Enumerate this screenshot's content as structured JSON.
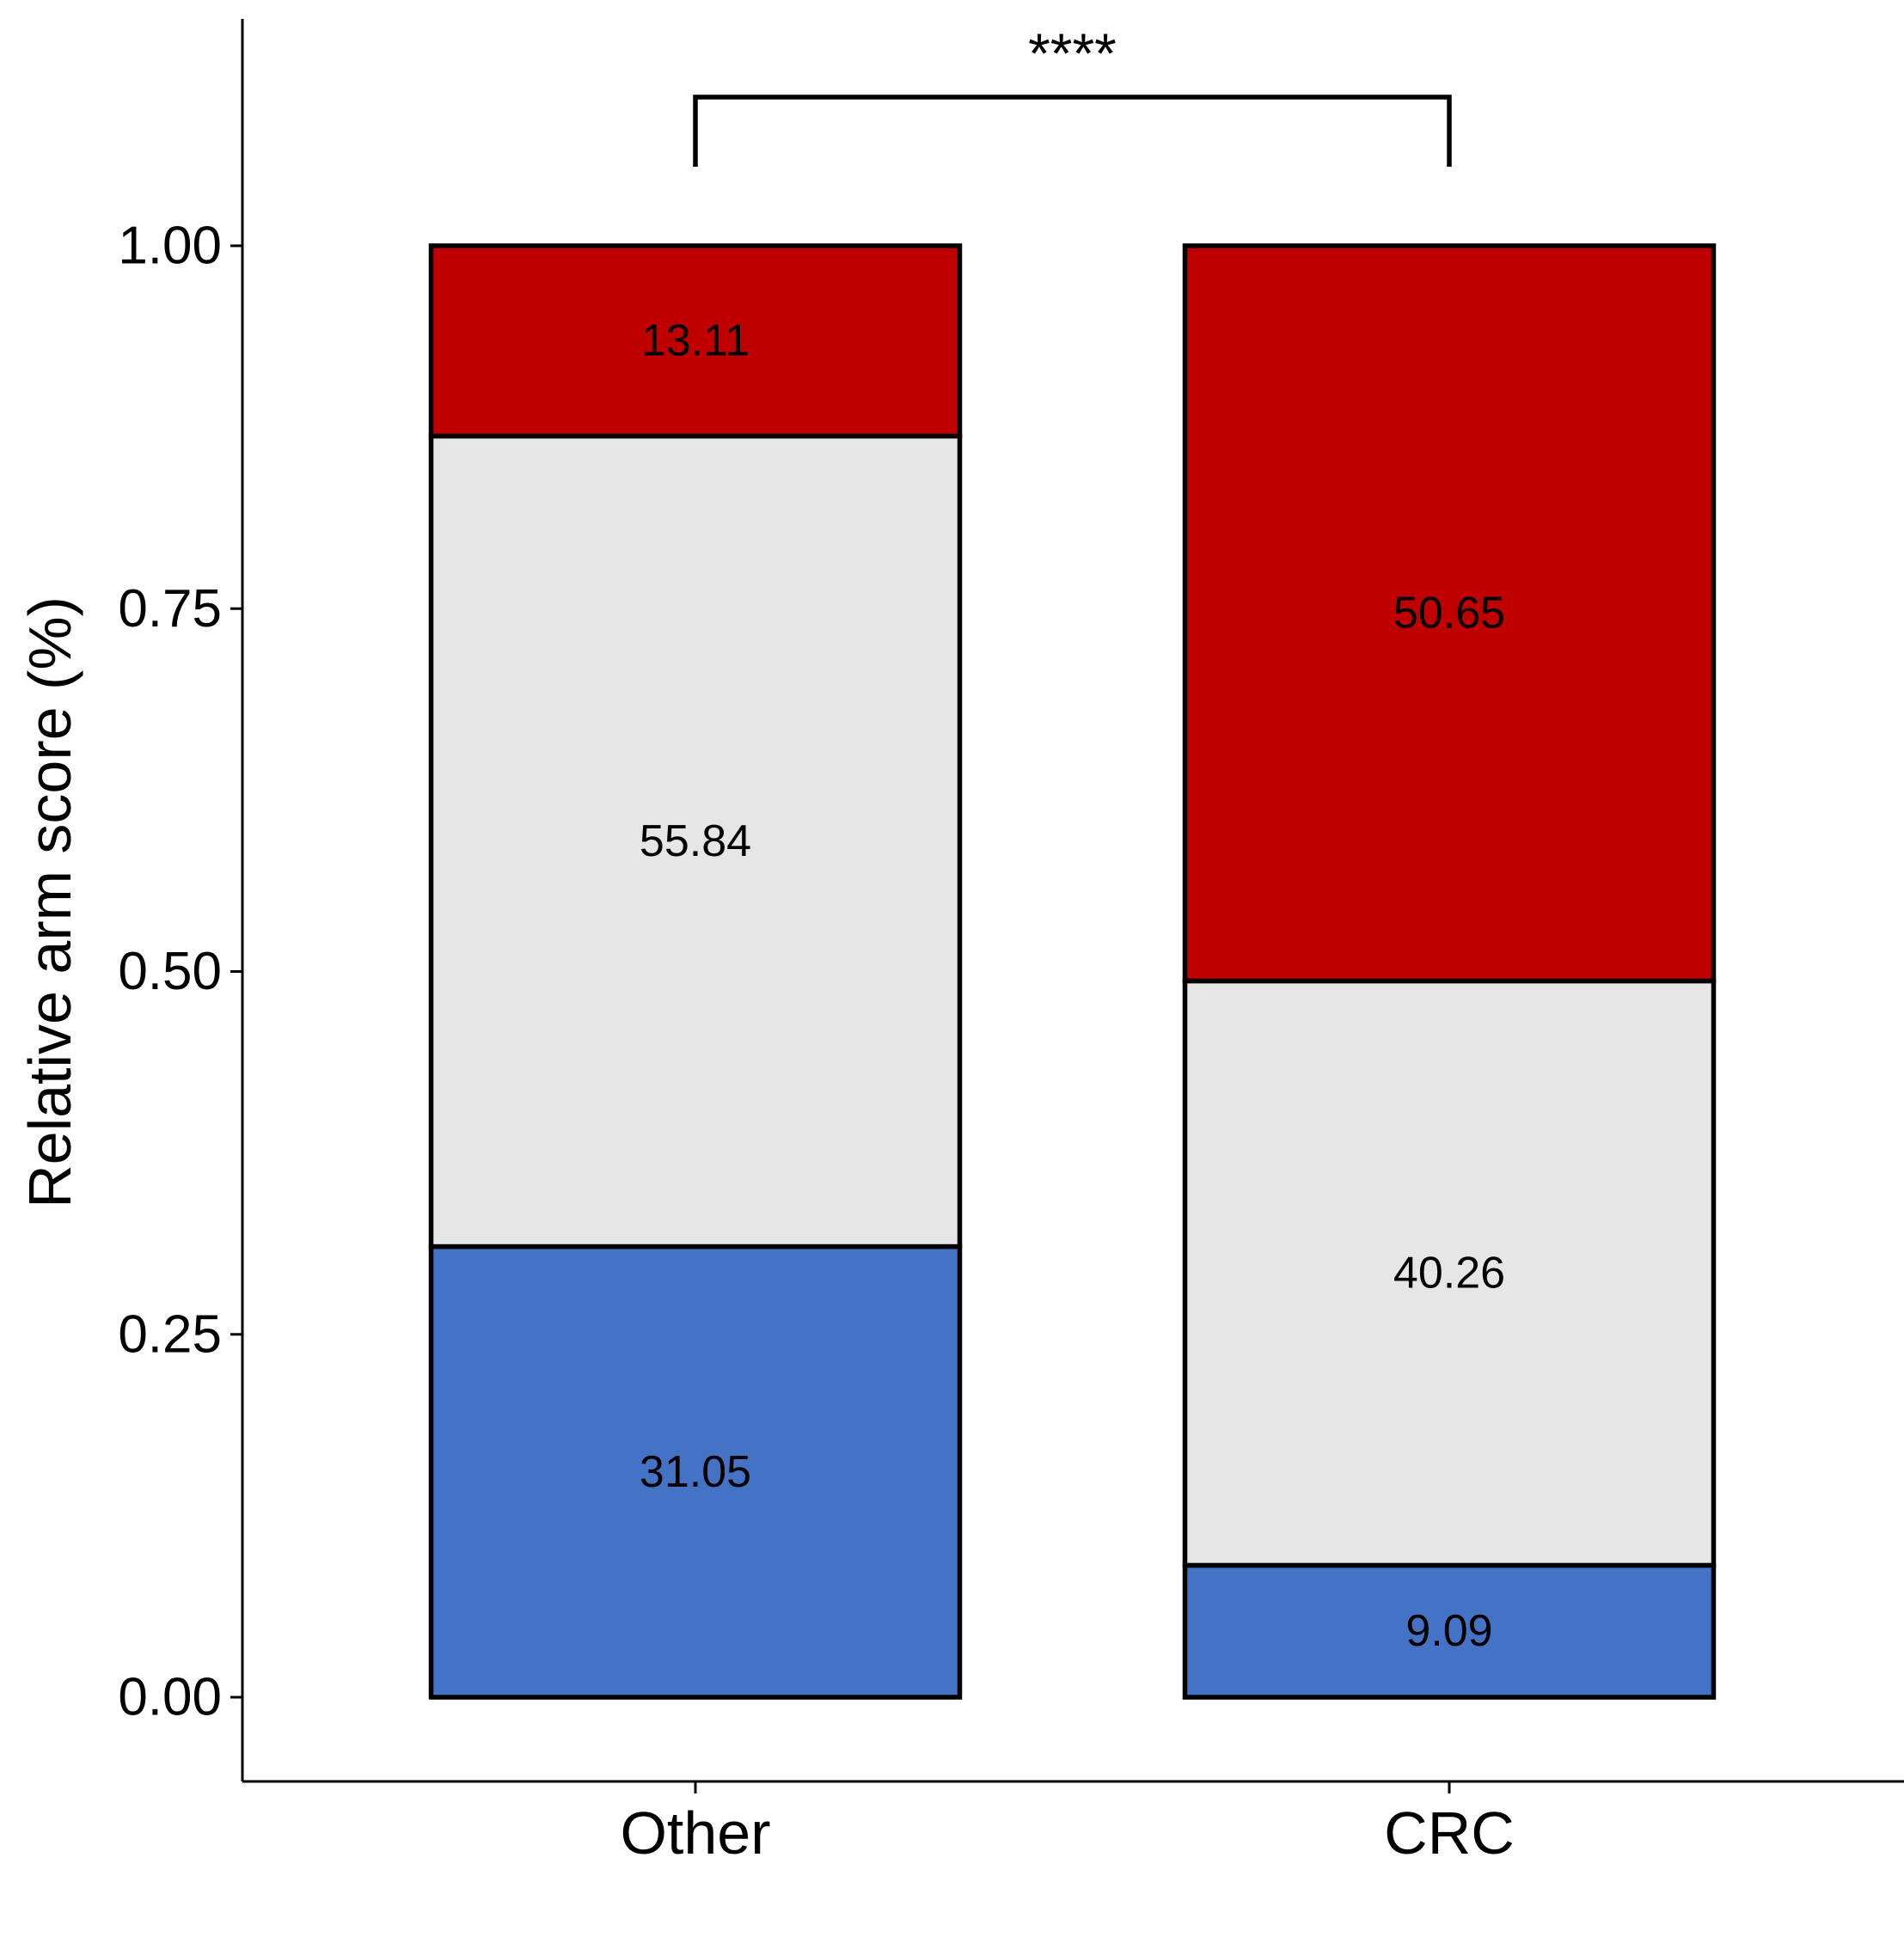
{
  "chart_data": {
    "type": "bar",
    "stacked": true,
    "categories": [
      "Other",
      "CRC"
    ],
    "series": [
      {
        "values": [
          31.05,
          9.09
        ],
        "color": "#4472C4"
      },
      {
        "values": [
          55.84,
          40.26
        ],
        "color": "#E6E6E6"
      },
      {
        "values": [
          13.11,
          50.65
        ],
        "color": "#C00000"
      }
    ],
    "value_labels": [
      [
        "31.05",
        "55.84",
        "13.11"
      ],
      [
        "9.09",
        "40.26",
        "50.65"
      ]
    ],
    "ylabel": "Relative arm score (%)",
    "xlabel": "",
    "ylim": [
      -0.055,
      1.16
    ],
    "yticks": [
      0,
      0.25,
      0.5,
      0.75,
      1
    ],
    "ytick_labels": [
      "0.00",
      "0.25",
      "0.50",
      "0.75",
      "1.00"
    ],
    "significance": {
      "from": "Other",
      "to": "CRC",
      "label": "****"
    },
    "grid": false,
    "legend": "none",
    "outline_color": "#000000"
  }
}
